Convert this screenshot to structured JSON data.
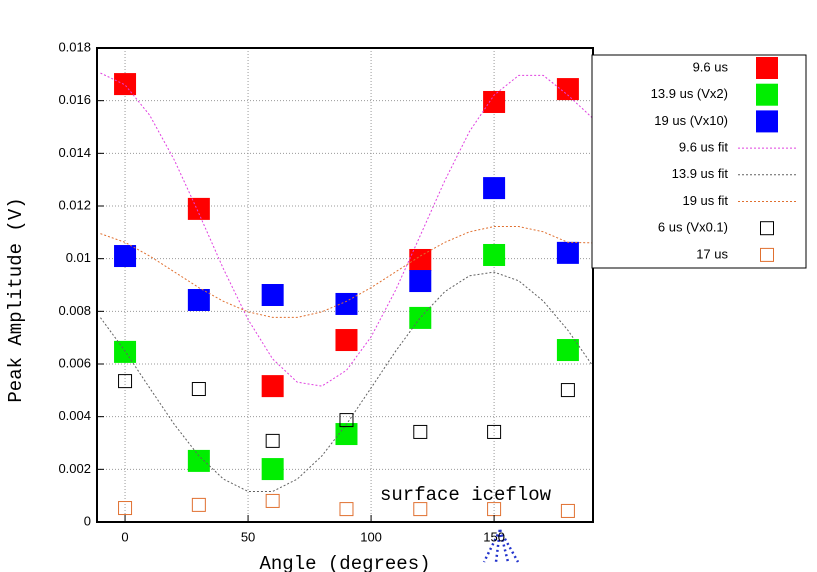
{
  "chart_data": {
    "type": "scatter",
    "xlabel": "Angle (degrees)",
    "ylabel": "Peak Amplitude (V)",
    "annotation": "surface iceflow",
    "xlim": [
      -11.4,
      190.2
    ],
    "xticks": [
      0,
      50,
      100,
      150
    ],
    "ylim": [
      0,
      0.018
    ],
    "yticks": [
      0,
      0.002,
      0.004,
      0.006,
      0.008,
      0.01,
      0.012,
      0.014,
      0.016,
      0.018
    ],
    "grid": true,
    "legend": "outside-right",
    "series": [
      {
        "name": "9.6 us",
        "type": "scatter",
        "filled": true,
        "color": "#ff0000",
        "x": [
          0,
          30,
          60,
          90,
          120,
          150,
          180
        ],
        "values": [
          0.01663,
          0.01189,
          0.00516,
          0.00691,
          0.00995,
          0.01595,
          0.01644
        ]
      },
      {
        "name": "13.9 us (Vx2)",
        "type": "scatter",
        "filled": true,
        "color": "#00ee00",
        "x": [
          0,
          30,
          60,
          90,
          120,
          150,
          180
        ],
        "values": [
          0.00646,
          0.00232,
          0.00201,
          0.00334,
          0.00775,
          0.01014,
          0.00653
        ]
      },
      {
        "name": "19 us (Vx10)",
        "type": "scatter",
        "filled": true,
        "color": "#0000ff",
        "x": [
          0,
          30,
          60,
          90,
          120,
          150,
          180
        ],
        "values": [
          0.0101,
          0.00843,
          0.00862,
          0.00828,
          0.00915,
          0.01268,
          0.01022
        ]
      },
      {
        "name": "9.6 us fit",
        "type": "line",
        "color": "#e040e0",
        "x": [
          -10,
          0,
          10,
          20,
          30,
          40,
          50,
          60,
          70,
          80,
          90,
          100,
          110,
          120,
          130,
          140,
          150,
          160,
          170,
          180,
          190
        ],
        "values": [
          0.01705,
          0.0166,
          0.01545,
          0.01375,
          0.01172,
          0.00961,
          0.00769,
          0.00619,
          0.00531,
          0.00516,
          0.00576,
          0.00703,
          0.00881,
          0.01088,
          0.01297,
          0.01483,
          0.01621,
          0.01696,
          0.01696,
          0.01621,
          0.01534
        ]
      },
      {
        "name": "13.9 us fit",
        "type": "line",
        "color": "#606060",
        "x": [
          -10,
          0,
          10,
          20,
          30,
          40,
          50,
          60,
          70,
          80,
          90,
          100,
          110,
          120,
          130,
          140,
          150,
          160,
          170,
          180,
          190
        ],
        "values": [
          0.00776,
          0.00649,
          0.00509,
          0.00371,
          0.00251,
          0.00163,
          0.00116,
          0.00116,
          0.00163,
          0.00251,
          0.00371,
          0.00509,
          0.00649,
          0.00776,
          0.00875,
          0.00935,
          0.00949,
          0.00916,
          0.00839,
          0.00728,
          0.00594
        ]
      },
      {
        "name": "19 us fit",
        "type": "line",
        "color": "#e07030",
        "x": [
          -10,
          0,
          10,
          20,
          30,
          40,
          50,
          60,
          70,
          80,
          90,
          100,
          110,
          120,
          130,
          140,
          150,
          160,
          170,
          180,
          190
        ],
        "values": [
          0.01095,
          0.01062,
          0.0101,
          0.0095,
          0.0089,
          0.00838,
          0.00798,
          0.00777,
          0.00777,
          0.00798,
          0.00838,
          0.0089,
          0.0095,
          0.0101,
          0.01062,
          0.01102,
          0.01122,
          0.01122,
          0.01102,
          0.01062,
          0.0106
        ]
      },
      {
        "name": "6 us (Vx0.1)",
        "type": "scatter",
        "filled": false,
        "color": "#000000",
        "x": [
          0,
          30,
          60,
          90,
          120,
          150,
          180
        ],
        "values": [
          0.00535,
          0.00505,
          0.00308,
          0.00387,
          0.00342,
          0.00342,
          0.00501
        ]
      },
      {
        "name": "17 us",
        "type": "scatter",
        "filled": false,
        "color": "#e07030",
        "x": [
          0,
          30,
          60,
          90,
          120,
          150,
          180
        ],
        "values": [
          0.00053,
          0.00065,
          0.0008,
          0.00049,
          0.00049,
          0.00049,
          0.00042
        ]
      }
    ]
  }
}
